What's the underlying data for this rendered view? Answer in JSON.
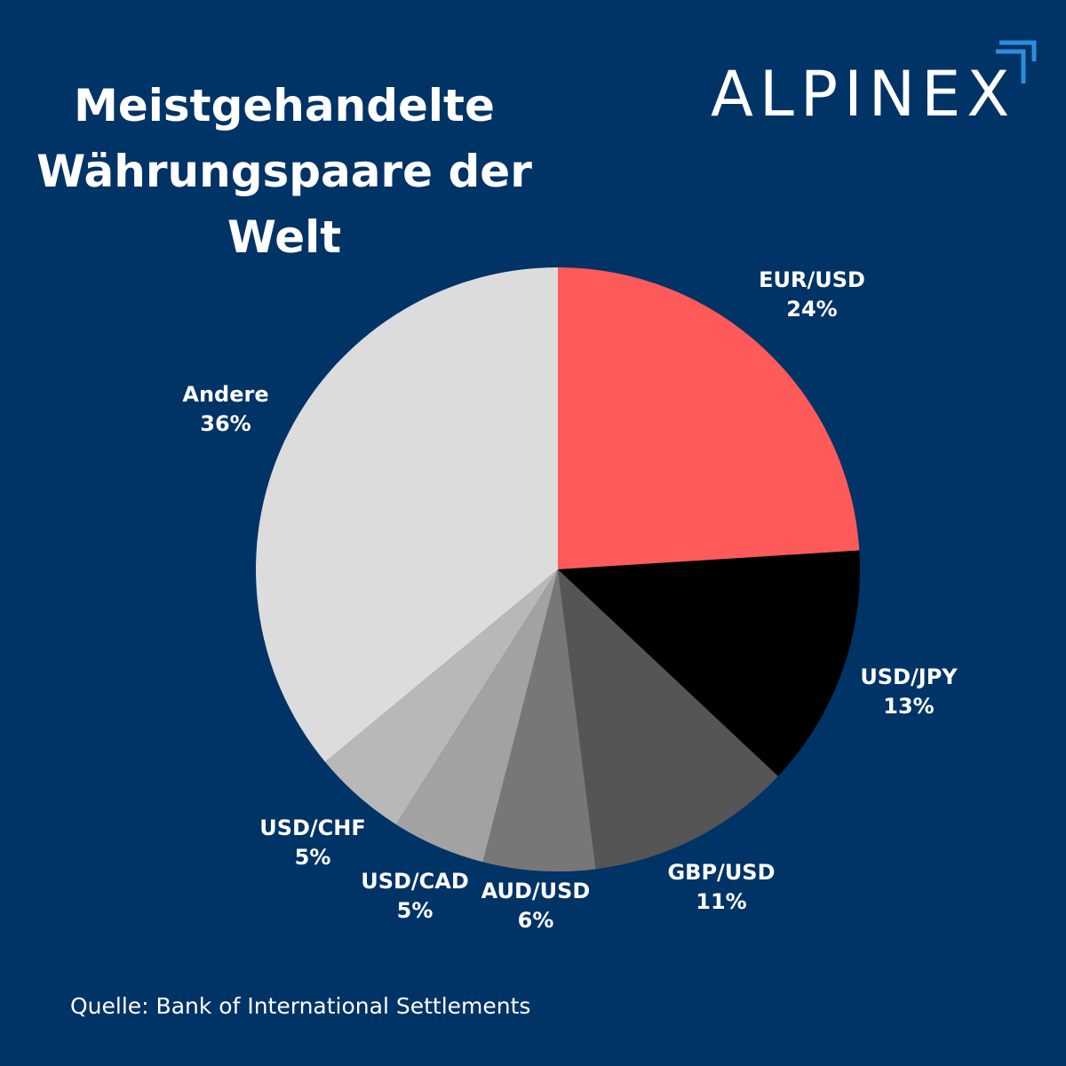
{
  "title_lines": [
    "Meistgehandelte",
    "Währungspaare der",
    "Welt"
  ],
  "brand": {
    "name": "ALPINEX",
    "accent_color": "#2d8ee0"
  },
  "source": "Quelle: Bank of International Settlements",
  "colors": {
    "background": "#003366",
    "text": "#ffffff"
  },
  "chart_data": {
    "type": "pie",
    "title": "Meistgehandelte Währungspaare der Welt",
    "start_angle_deg": 0,
    "direction": "clockwise",
    "slices": [
      {
        "label": "EUR/USD",
        "value": 24,
        "value_label": "24%",
        "color": "#ff5a5a"
      },
      {
        "label": "USD/JPY",
        "value": 13,
        "value_label": "13%",
        "color": "#000000"
      },
      {
        "label": "GBP/USD",
        "value": 11,
        "value_label": "11%",
        "color": "#555555"
      },
      {
        "label": "AUD/USD",
        "value": 6,
        "value_label": "6%",
        "color": "#777777"
      },
      {
        "label": "USD/CAD",
        "value": 5,
        "value_label": "5%",
        "color": "#a2a2a2"
      },
      {
        "label": "USD/CHF",
        "value": 5,
        "value_label": "5%",
        "color": "#b8b8b8"
      },
      {
        "label": "Andere",
        "value": 36,
        "value_label": "36%",
        "color": "#dcdcdc"
      }
    ]
  }
}
